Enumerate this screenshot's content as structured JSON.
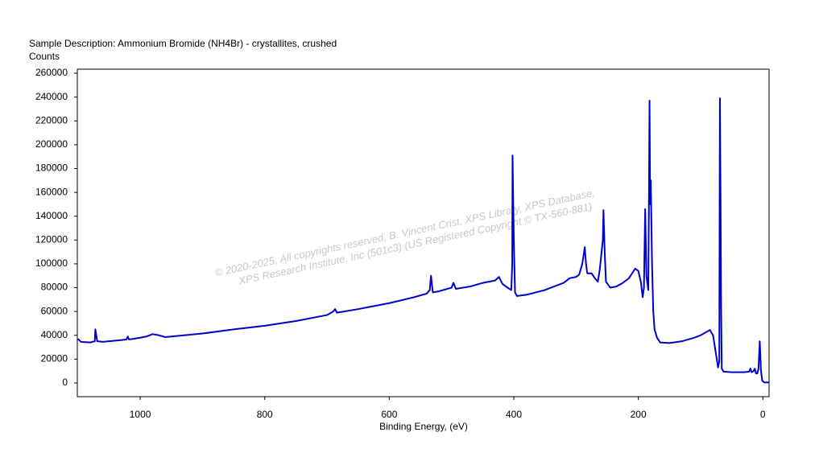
{
  "chart_data": {
    "type": "line",
    "title": "Sample Description:  Ammonium Bromide (NH4Br) - crystallites, crushed",
    "ylabel": "Counts",
    "xlabel": "Binding Energy, (eV)",
    "annotations": [
      "©  2020-2025,  All copyrights reserved,   B. Vincent Crist,  XPS Library, XPS Database,",
      "XPS Research Institute, Inc (501c3)   (US Registered Copyright © TX-560-881)"
    ],
    "xlim": [
      1101,
      -10
    ],
    "ylim": [
      -11500,
      263400
    ],
    "xticks": [
      1000,
      800,
      600,
      400,
      200,
      0
    ],
    "yticks": [
      0,
      20000,
      40000,
      60000,
      80000,
      100000,
      120000,
      140000,
      160000,
      180000,
      200000,
      220000,
      240000,
      260000
    ],
    "grid": false,
    "x": [
      1100,
      1095,
      1080,
      1073,
      1072,
      1069,
      1060,
      1050,
      1040,
      1030,
      1022,
      1020,
      1018,
      1000,
      990,
      980,
      970,
      960,
      950,
      900,
      850,
      800,
      750,
      700,
      690,
      687,
      684,
      650,
      600,
      560,
      540,
      535,
      533,
      530,
      520,
      500,
      497,
      493,
      470,
      450,
      430,
      424,
      418,
      410,
      404,
      402.5,
      402,
      400,
      398,
      395,
      380,
      350,
      320,
      310,
      300,
      295,
      290,
      286,
      284,
      282,
      275,
      270,
      265,
      262,
      257,
      256,
      254,
      252,
      245,
      235,
      225,
      215,
      210,
      205,
      200,
      196,
      193,
      191,
      189,
      187,
      184,
      183,
      182,
      181,
      180,
      178,
      176,
      174,
      170,
      165,
      150,
      130,
      110,
      100,
      90,
      85,
      80,
      77,
      74,
      72,
      70,
      69,
      68,
      67,
      66,
      63,
      50,
      30,
      22,
      20,
      18,
      15,
      13,
      11,
      9,
      7,
      5,
      3,
      1,
      -2,
      -10
    ],
    "series": [
      {
        "name": "NH4Br",
        "color": "#0000cc",
        "values": [
          37000,
          34500,
          34000,
          35000,
          45000,
          35000,
          34500,
          35000,
          35500,
          36000,
          36500,
          39000,
          36500,
          38000,
          39000,
          41000,
          40000,
          38500,
          39000,
          41500,
          45000,
          48000,
          52000,
          57000,
          60000,
          62000,
          59000,
          62000,
          67000,
          72000,
          75000,
          78000,
          90000,
          76000,
          77000,
          80000,
          84000,
          79000,
          81000,
          84000,
          86000,
          89000,
          83000,
          80000,
          78000,
          100000,
          191000,
          120000,
          76000,
          73000,
          74000,
          78000,
          84000,
          88000,
          89000,
          91000,
          100000,
          114000,
          100000,
          92000,
          92000,
          88000,
          85000,
          95000,
          120000,
          145000,
          110000,
          85000,
          80000,
          81000,
          84000,
          88000,
          92000,
          96000,
          94000,
          85000,
          72000,
          80000,
          146000,
          90000,
          78000,
          150000,
          237000,
          150000,
          170000,
          100000,
          60000,
          45000,
          38000,
          34000,
          33500,
          35000,
          38000,
          40000,
          43000,
          44500,
          40000,
          30000,
          20000,
          13000,
          18000,
          239000,
          160000,
          60000,
          12000,
          9500,
          9000,
          9000,
          9500,
          12000,
          9000,
          10000,
          12000,
          8000,
          8000,
          12000,
          35000,
          10000,
          2000,
          500,
          500
        ]
      }
    ]
  }
}
